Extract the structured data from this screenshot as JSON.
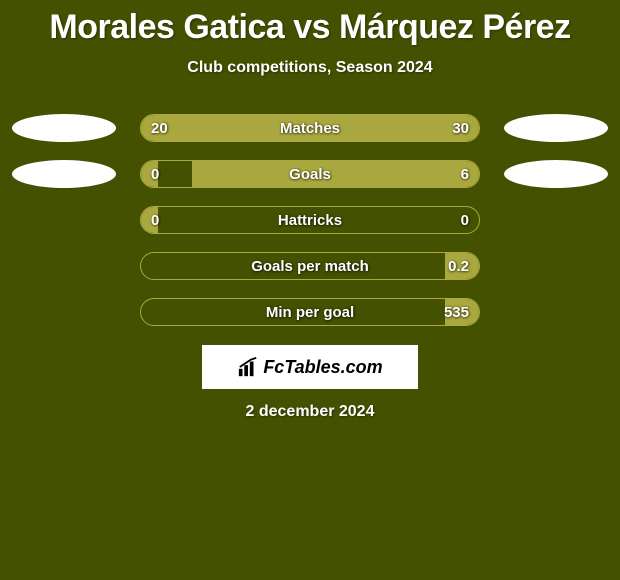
{
  "title": "Morales Gatica vs Márquez Pérez",
  "subtitle": "Club competitions, Season 2024",
  "date": "2 december 2024",
  "logo_text": "FcTables.com",
  "colors": {
    "background": "#445100",
    "bar_fill": "#a9a83e",
    "bar_border": "#a9a83e",
    "avatar": "#ffffff",
    "text": "#ffffff",
    "logo_bg": "#ffffff",
    "logo_text": "#000000"
  },
  "rows": [
    {
      "label": "Matches",
      "left_val": "20",
      "right_val": "30",
      "left_pct": 40,
      "right_pct": 60,
      "show_avatars": true
    },
    {
      "label": "Goals",
      "left_val": "0",
      "right_val": "6",
      "left_pct": 5,
      "right_pct": 85,
      "show_avatars": true
    },
    {
      "label": "Hattricks",
      "left_val": "0",
      "right_val": "0",
      "left_pct": 5,
      "right_pct": 0,
      "show_avatars": false
    },
    {
      "label": "Goals per match",
      "left_val": "",
      "right_val": "0.2",
      "left_pct": 0,
      "right_pct": 10,
      "show_avatars": false
    },
    {
      "label": "Min per goal",
      "left_val": "",
      "right_val": "535",
      "left_pct": 0,
      "right_pct": 10,
      "show_avatars": false
    }
  ]
}
